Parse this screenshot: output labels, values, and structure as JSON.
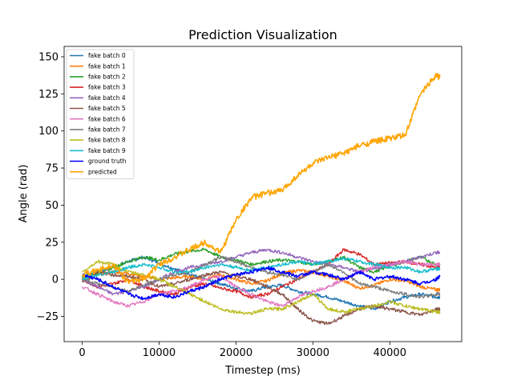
{
  "chart_data": {
    "type": "line",
    "title": "Prediction Visualization",
    "xlabel": "Timestep (ms)",
    "ylabel": "Angle (rad)",
    "xlim": [
      -2350,
      49350
    ],
    "ylim": [
      -42,
      157
    ],
    "xticks": [
      0,
      10000,
      20000,
      30000,
      40000
    ],
    "yticks": [
      -25,
      0,
      25,
      50,
      75,
      100,
      125,
      150
    ],
    "grid": false,
    "legend_position": "upper-left",
    "x": [
      0,
      2000,
      4000,
      6000,
      8000,
      10000,
      12000,
      14000,
      16000,
      18000,
      20000,
      22000,
      24000,
      26000,
      28000,
      30000,
      32000,
      34000,
      36000,
      38000,
      40000,
      42000,
      44000,
      46000,
      46500
    ],
    "series": [
      {
        "name": "fake batch 0",
        "color": "#1f77b4",
        "values": [
          2,
          5,
          8,
          12,
          15,
          11,
          7,
          3,
          0,
          -3,
          -6,
          -8,
          -5,
          -4,
          -8,
          -10,
          -12,
          -15,
          -18,
          -20,
          -15,
          -12,
          -10,
          -12,
          -12
        ]
      },
      {
        "name": "fake batch 1",
        "color": "#ff7f0e",
        "values": [
          0,
          3,
          5,
          4,
          2,
          0,
          1,
          2,
          0,
          3,
          0,
          -3,
          -1,
          4,
          6,
          5,
          2,
          -1,
          -6,
          -4,
          0,
          -1,
          -5,
          -7,
          -7
        ]
      },
      {
        "name": "fake batch 2",
        "color": "#2ca02c",
        "values": [
          2,
          4,
          8,
          12,
          15,
          13,
          17,
          19,
          20,
          15,
          13,
          10,
          12,
          13,
          12,
          10,
          12,
          15,
          8,
          5,
          9,
          12,
          15,
          10,
          10
        ]
      },
      {
        "name": "fake batch 3",
        "color": "#d62728",
        "values": [
          0,
          -5,
          -3,
          0,
          -5,
          -8,
          -10,
          -5,
          -3,
          -6,
          -8,
          -12,
          -10,
          -5,
          0,
          5,
          10,
          20,
          17,
          10,
          11,
          12,
          10,
          8,
          8
        ]
      },
      {
        "name": "fake batch 4",
        "color": "#9467bd",
        "values": [
          0,
          -5,
          -10,
          -8,
          -5,
          0,
          5,
          8,
          10,
          12,
          15,
          18,
          20,
          18,
          15,
          12,
          10,
          8,
          5,
          7,
          10,
          12,
          15,
          18,
          18
        ]
      },
      {
        "name": "fake batch 5",
        "color": "#8c564b",
        "values": [
          -2,
          5,
          3,
          2,
          0,
          -5,
          -3,
          0,
          3,
          5,
          2,
          0,
          -5,
          -10,
          -20,
          -28,
          -30,
          -25,
          -20,
          -18,
          -20,
          -22,
          -24,
          -20,
          -20
        ]
      },
      {
        "name": "fake batch 6",
        "color": "#e377c2",
        "values": [
          -5,
          -10,
          -15,
          -18,
          -15,
          -10,
          -8,
          -5,
          0,
          2,
          -5,
          -10,
          -15,
          -18,
          -12,
          -8,
          -5,
          0,
          5,
          8,
          10,
          12,
          10,
          10,
          10
        ]
      },
      {
        "name": "fake batch 7",
        "color": "#7f7f7f",
        "values": [
          0,
          -3,
          -5,
          -8,
          -4,
          0,
          3,
          5,
          10,
          15,
          12,
          8,
          5,
          3,
          0,
          5,
          10,
          5,
          -3,
          -5,
          -8,
          -10,
          -12,
          -10,
          -10
        ]
      },
      {
        "name": "fake batch 8",
        "color": "#bcbd22",
        "values": [
          5,
          12,
          10,
          5,
          3,
          0,
          -5,
          -10,
          -15,
          -20,
          -22,
          -23,
          -20,
          -20,
          -15,
          -10,
          -20,
          -22,
          -20,
          -18,
          -15,
          -18,
          -20,
          -22,
          -22
        ]
      },
      {
        "name": "fake batch 9",
        "color": "#17becf",
        "values": [
          0,
          3,
          5,
          8,
          10,
          8,
          5,
          5,
          8,
          10,
          8,
          6,
          8,
          10,
          12,
          10,
          12,
          14,
          12,
          10,
          8,
          8,
          5,
          7,
          7
        ]
      },
      {
        "name": "ground truth",
        "color": "#0000ff",
        "values": [
          3,
          0,
          -5,
          -10,
          -13,
          -10,
          -12,
          -8,
          -5,
          0,
          3,
          5,
          8,
          5,
          2,
          5,
          3,
          0,
          5,
          0,
          2,
          0,
          -3,
          0,
          2
        ]
      },
      {
        "name": "predicted",
        "color": "#ffa500",
        "values": [
          3,
          6,
          10,
          -2,
          0,
          10,
          15,
          20,
          25,
          18,
          40,
          55,
          58,
          60,
          70,
          78,
          82,
          85,
          90,
          93,
          95,
          97,
          125,
          138,
          136
        ]
      }
    ]
  }
}
